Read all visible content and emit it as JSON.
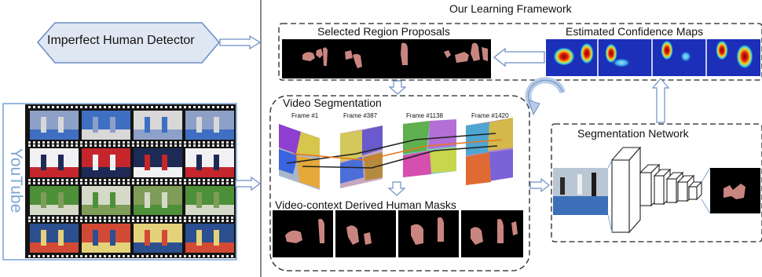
{
  "framework_title": "Our Learning Framework",
  "detector_label": "Imperfect Human Detector",
  "youtube_label": "YouTube",
  "selected_proposals_label": "Selected Region Proposals",
  "confidence_maps_label": "Estimated Confidence Maps",
  "video_segmentation_label": "Video Segmentation",
  "frames": [
    {
      "label": "Frame #1"
    },
    {
      "label": "Frame #387"
    },
    {
      "label": "Frame #1138"
    },
    {
      "label": "Frame #1420"
    }
  ],
  "derived_masks_label": "Video-context Derived Human Masks",
  "segmentation_network_label": "Segmentation Network",
  "colors": {
    "mask_pink": "#c9857f",
    "arrow_blue": "#6f8fc7",
    "heat_bg": "#1b2fb8",
    "heat_hot": "#d81f10",
    "film_black": "#141414",
    "youtube_blue": "#7ea6d6"
  }
}
